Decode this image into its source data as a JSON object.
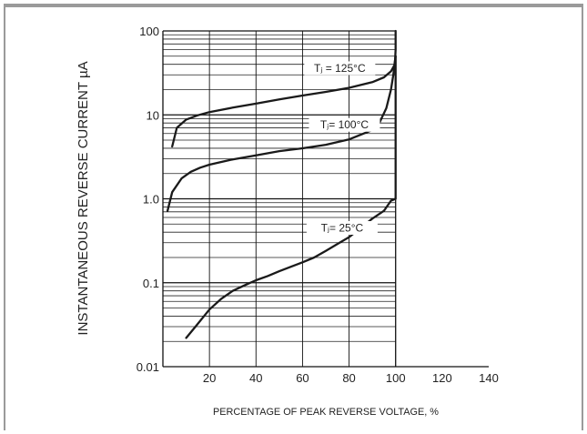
{
  "chart_data": {
    "type": "line",
    "xlabel": "PERCENTAGE OF PEAK REVERSE VOLTAGE, %",
    "ylabel": "INSTANTANEOUS REVERSE CURRENT µA",
    "xlim": [
      0,
      140
    ],
    "ylim": [
      0.01,
      100
    ],
    "yscale": "log",
    "grid": true,
    "x_ticks": [
      "20",
      "40",
      "60",
      "80",
      "100",
      "120",
      "140"
    ],
    "y_ticks": [
      "0.01",
      "0.1",
      "1.0",
      "10",
      "100"
    ],
    "series": [
      {
        "name": "Tⱼ = 125°C",
        "x": [
          4,
          6,
          10,
          15,
          20,
          30,
          40,
          50,
          60,
          70,
          80,
          90,
          95,
          98,
          99.7,
          100,
          100
        ],
        "y": [
          4.2,
          7.0,
          8.8,
          9.9,
          10.8,
          12.2,
          13.6,
          15.3,
          17.0,
          18.8,
          21.0,
          24.5,
          28.0,
          33.0,
          40.0,
          60.0,
          100.0
        ]
      },
      {
        "name": "Tⱼ= 100°C",
        "x": [
          2,
          4,
          8,
          12,
          16,
          20,
          30,
          40,
          50,
          60,
          70,
          80,
          90,
          93,
          96,
          98,
          99,
          99.6,
          100
        ],
        "y": [
          0.72,
          1.2,
          1.75,
          2.1,
          2.35,
          2.55,
          2.95,
          3.3,
          3.7,
          4.0,
          4.4,
          5.1,
          6.6,
          8.0,
          12.0,
          20.0,
          30.0,
          42.0,
          50.0
        ]
      },
      {
        "name": "Tⱼ= 25°C",
        "x": [
          10,
          14,
          20,
          25,
          30,
          35,
          40,
          45,
          50,
          55,
          60,
          65,
          70,
          75,
          80,
          85,
          90,
          95,
          98,
          100,
          100
        ],
        "y": [
          0.022,
          0.03,
          0.048,
          0.064,
          0.08,
          0.093,
          0.107,
          0.12,
          0.137,
          0.155,
          0.175,
          0.2,
          0.24,
          0.29,
          0.35,
          0.45,
          0.58,
          0.72,
          0.95,
          1.0,
          50.0
        ]
      }
    ],
    "annotations": [
      {
        "text": "Tⱼ = 125°C",
        "x": 76,
        "y": 36
      },
      {
        "text": "Tⱼ= 100°C",
        "x": 78,
        "y": 7.6
      },
      {
        "text": "Tⱼ= 25°C",
        "x": 77,
        "y": 0.45
      }
    ]
  }
}
